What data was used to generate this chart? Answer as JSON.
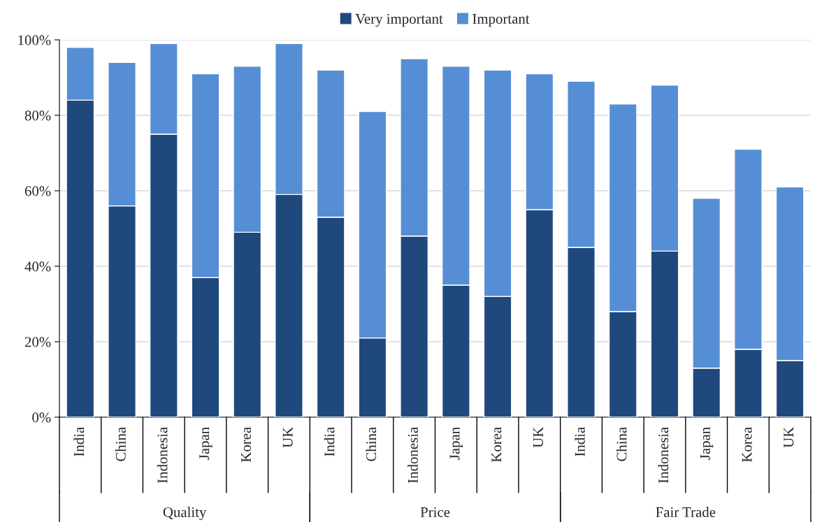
{
  "chart_data": {
    "type": "bar",
    "stacked": true,
    "categories": [
      "India",
      "China",
      "Indonesia",
      "Japan",
      "Korea",
      "UK",
      "India",
      "China",
      "Indonesia",
      "Japan",
      "Korea",
      "UK",
      "India",
      "China",
      "Indonesia",
      "Japan",
      "Korea",
      "UK"
    ],
    "series": [
      {
        "name": "Very important",
        "color": "#1f497d",
        "values": [
          84,
          56,
          75,
          37,
          49,
          59,
          53,
          21,
          48,
          35,
          32,
          55,
          45,
          28,
          44,
          13,
          18,
          15
        ]
      },
      {
        "name": "Important",
        "color": "#558ed5",
        "values": [
          14,
          38,
          24,
          54,
          44,
          40,
          39,
          60,
          47,
          58,
          60,
          36,
          44,
          55,
          44,
          45,
          53,
          46
        ]
      }
    ],
    "annotations": [
      "Quality",
      "Price",
      "Fair Trade"
    ],
    "ylim": [
      0,
      100
    ],
    "yticks": [
      {
        "value": 0,
        "label": "0%"
      },
      {
        "value": 20,
        "label": "20%"
      },
      {
        "value": 40,
        "label": "40%"
      },
      {
        "value": 60,
        "label": "60%"
      },
      {
        "value": 80,
        "label": "80%"
      },
      {
        "value": 100,
        "label": "100%"
      }
    ],
    "grid": "y",
    "legend": "top"
  }
}
